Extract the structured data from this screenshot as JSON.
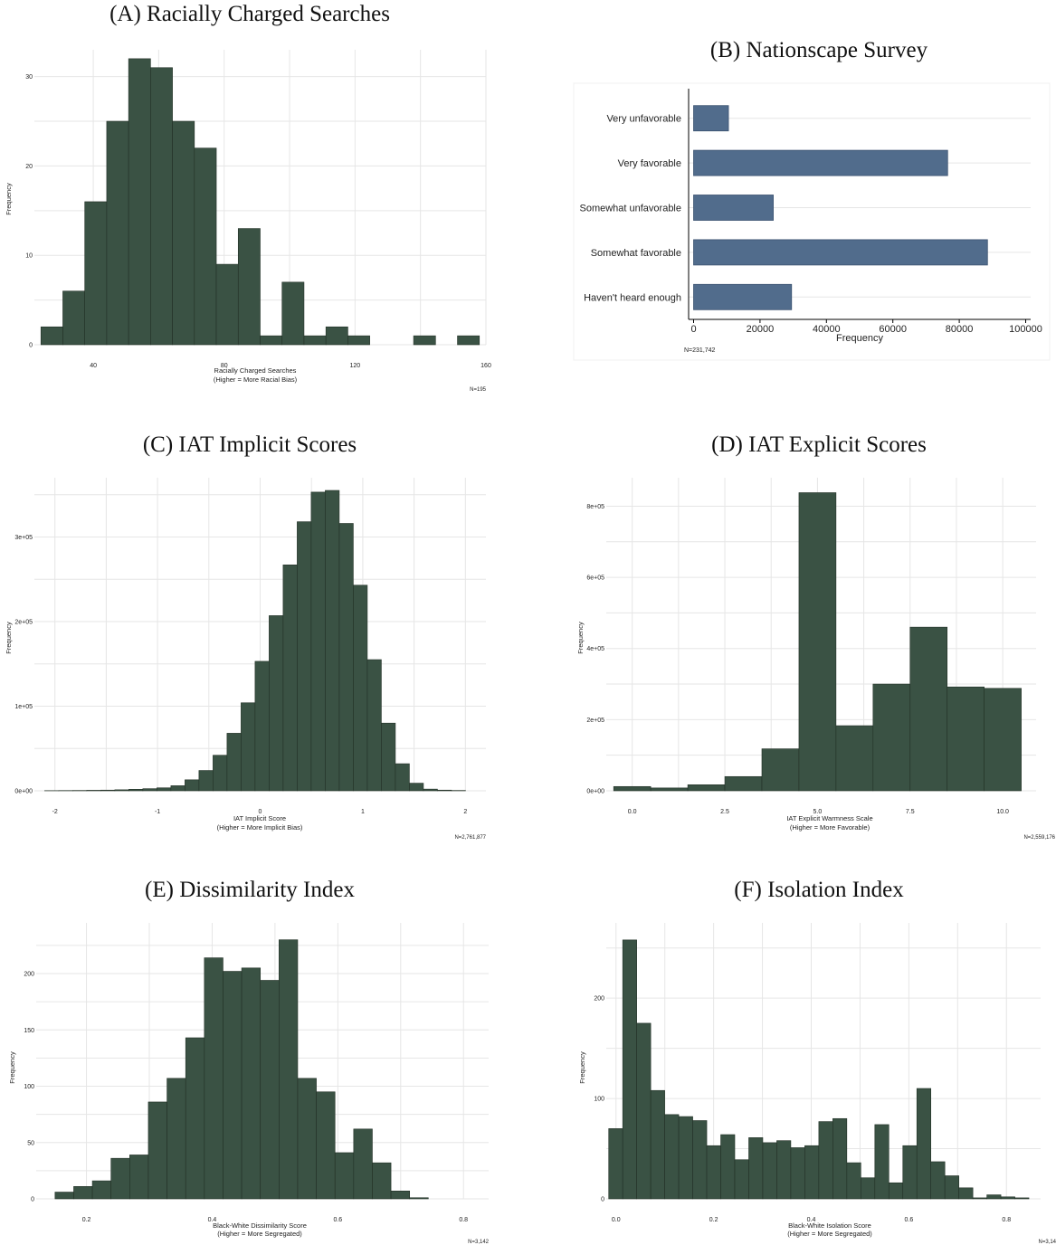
{
  "colors": {
    "histogram_fill": "#3a5244",
    "histogram_edge": "#223026",
    "bar_fill": "#516c8c",
    "grid": "#e6e6e6"
  },
  "chart_data": [
    {
      "id": "A",
      "type": "bar",
      "title": "(A) Racially Charged Searches",
      "xlabel": "Racially Charged Searches",
      "xlabel2": "(Higher = More Racial Bias)",
      "ylabel": "Frequency",
      "note": "N=195",
      "xlim": [
        22,
        160
      ],
      "ylim": [
        0,
        33
      ],
      "xticks": [
        {
          "v": 40,
          "label": "40"
        },
        {
          "v": 80,
          "label": "80"
        },
        {
          "v": 120,
          "label": "120"
        },
        {
          "v": 160,
          "label": "160"
        }
      ],
      "yticks": [
        {
          "v": 0,
          "label": "0"
        },
        {
          "v": 10,
          "label": "10"
        },
        {
          "v": 20,
          "label": "20"
        },
        {
          "v": 30,
          "label": "30"
        }
      ],
      "bin_start": 24.0,
      "bin_width": 6.7,
      "values": [
        2,
        6,
        16,
        25,
        32,
        31,
        25,
        22,
        9,
        13,
        1,
        7,
        1,
        2,
        1,
        0,
        0,
        1,
        0,
        1
      ]
    },
    {
      "id": "B",
      "type": "bar",
      "orientation": "horizontal",
      "title": "(B) Nationscape Survey",
      "xlabel": "Frequency",
      "note": "N=231,742",
      "categories": [
        "Very unfavorable",
        "Very favorable",
        "Somewhat unfavorable",
        "Somewhat favorable",
        "Haven't heard enough"
      ],
      "values": [
        10500,
        76500,
        24000,
        88500,
        29500
      ],
      "xlim": [
        -1500,
        101500
      ],
      "xticks": [
        {
          "v": 0,
          "label": "0"
        },
        {
          "v": 20000,
          "label": "20000"
        },
        {
          "v": 40000,
          "label": "40000"
        },
        {
          "v": 60000,
          "label": "60000"
        },
        {
          "v": 80000,
          "label": "80000"
        },
        {
          "v": 100000,
          "label": "100000"
        }
      ]
    },
    {
      "id": "C",
      "type": "bar",
      "title": "(C) IAT Implicit Scores",
      "xlabel": "IAT Implicit Score",
      "xlabel2": "(Higher = More Implicit Bias)",
      "ylabel": "Frequency",
      "note": "N=2,761,877",
      "xlim": [
        -2.2,
        2.2
      ],
      "ylim": [
        0,
        370000
      ],
      "xticks": [
        {
          "v": -2,
          "label": "-2"
        },
        {
          "v": -1,
          "label": "-1"
        },
        {
          "v": 0,
          "label": "0"
        },
        {
          "v": 1,
          "label": "1"
        },
        {
          "v": 2,
          "label": "2"
        }
      ],
      "yticks": [
        {
          "v": 0,
          "label": "0e+00"
        },
        {
          "v": 100000,
          "label": "1e+05"
        },
        {
          "v": 200000,
          "label": "2e+05"
        },
        {
          "v": 300000,
          "label": "3e+05"
        }
      ],
      "bin_start": -2.1,
      "bin_width": 0.1367,
      "values": [
        200,
        300,
        400,
        600,
        800,
        1200,
        1800,
        2500,
        3500,
        6000,
        13000,
        24000,
        42000,
        68000,
        104000,
        153000,
        207000,
        267000,
        318000,
        353000,
        355000,
        316000,
        243000,
        155000,
        80000,
        32000,
        9000,
        2000,
        800,
        400
      ]
    },
    {
      "id": "D",
      "type": "bar",
      "title": "(D) IAT Explicit Scores",
      "xlabel": "IAT Explicit Warmness Scale",
      "xlabel2": "(Higher = More Favorable)",
      "ylabel": "Frequency",
      "note": "N=2,559,176",
      "xlim": [
        -0.7,
        10.9
      ],
      "ylim": [
        0,
        880000
      ],
      "xticks": [
        {
          "v": 0,
          "label": "0.0"
        },
        {
          "v": 2.5,
          "label": "2.5"
        },
        {
          "v": 5,
          "label": "5.0"
        },
        {
          "v": 7.5,
          "label": "7.5"
        },
        {
          "v": 10,
          "label": "10.0"
        }
      ],
      "yticks": [
        {
          "v": 0,
          "label": "0e+00"
        },
        {
          "v": 200000,
          "label": "2e+05"
        },
        {
          "v": 400000,
          "label": "4e+05"
        },
        {
          "v": 600000,
          "label": "6e+05"
        },
        {
          "v": 800000,
          "label": "8e+05"
        }
      ],
      "bin_start": -0.5,
      "bin_width": 1.0,
      "values": [
        12000,
        8000,
        17000,
        40000,
        118000,
        838000,
        183000,
        300000,
        460000,
        292000,
        288000
      ]
    },
    {
      "id": "E",
      "type": "bar",
      "title": "(E) Dissimilarity Index",
      "xlabel": "Black-White Dissimilarity Score",
      "xlabel2": "(Higher = More Segregated)",
      "ylabel": "Frequency",
      "note": "N=3,142",
      "xlim": [
        0.12,
        0.84
      ],
      "ylim": [
        0,
        245
      ],
      "xticks": [
        {
          "v": 0.2,
          "label": "0.2"
        },
        {
          "v": 0.4,
          "label": "0.4"
        },
        {
          "v": 0.6,
          "label": "0.6"
        },
        {
          "v": 0.8,
          "label": "0.8"
        }
      ],
      "yticks": [
        {
          "v": 0,
          "label": "0"
        },
        {
          "v": 50,
          "label": "50"
        },
        {
          "v": 100,
          "label": "100"
        },
        {
          "v": 150,
          "label": "150"
        },
        {
          "v": 200,
          "label": "200"
        }
      ],
      "bin_start": 0.15,
      "bin_width": 0.0297,
      "values": [
        6,
        11,
        16,
        36,
        39,
        86,
        107,
        143,
        214,
        202,
        205,
        194,
        230,
        107,
        95,
        41,
        62,
        32,
        7,
        1
      ]
    },
    {
      "id": "F",
      "type": "bar",
      "title": "(F) Isolation Index",
      "xlabel": "Black-White Isolation Score",
      "xlabel2": "(Higher = More Segregated)",
      "ylabel": "Frequency",
      "note": "N=3,14",
      "xlim": [
        -0.02,
        0.87
      ],
      "ylim": [
        0,
        275
      ],
      "xticks": [
        {
          "v": 0.0,
          "label": "0.0"
        },
        {
          "v": 0.2,
          "label": "0.2"
        },
        {
          "v": 0.4,
          "label": "0.4"
        },
        {
          "v": 0.6,
          "label": "0.6"
        },
        {
          "v": 0.8,
          "label": "0.8"
        }
      ],
      "yticks": [
        {
          "v": 0,
          "label": "0"
        },
        {
          "v": 100,
          "label": "100"
        },
        {
          "v": 200,
          "label": "200"
        }
      ],
      "bin_start": -0.015,
      "bin_width": 0.0287,
      "values": [
        70,
        258,
        175,
        108,
        84,
        82,
        78,
        53,
        64,
        39,
        61,
        56,
        58,
        51,
        53,
        77,
        80,
        36,
        21,
        74,
        16,
        53,
        110,
        37,
        23,
        11,
        1,
        4,
        2,
        1
      ]
    }
  ]
}
